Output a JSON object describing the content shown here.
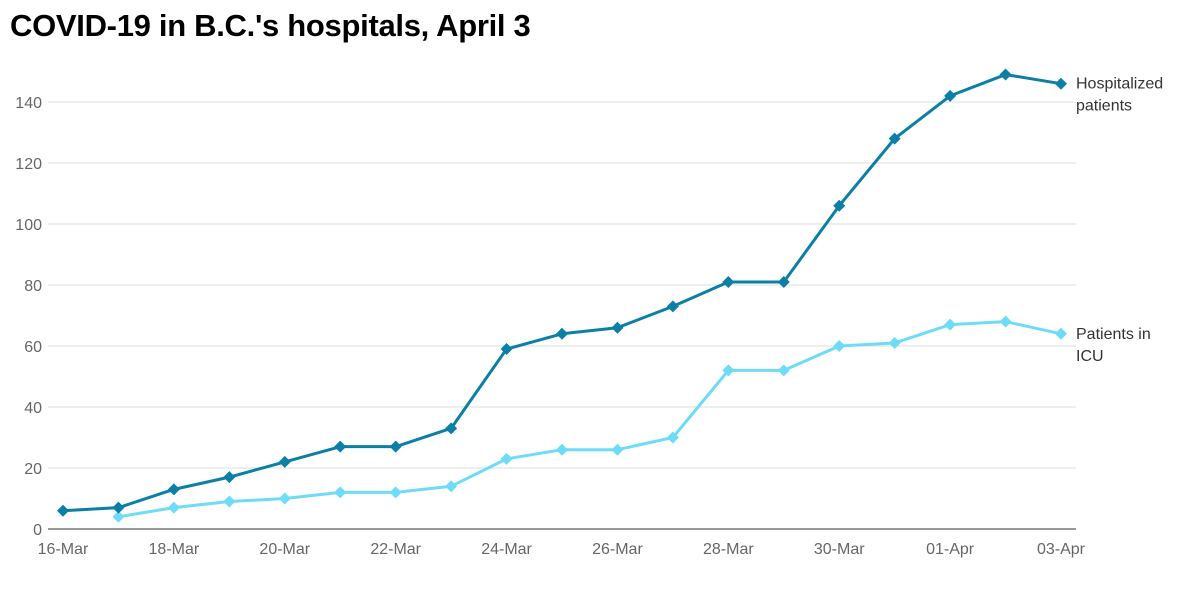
{
  "chart_data": {
    "type": "line",
    "title": "COVID-19 in B.C.'s hospitals, April 3",
    "xlabel": "",
    "ylabel": "",
    "ylim": [
      0,
      150
    ],
    "yticks": [
      0,
      20,
      40,
      60,
      80,
      100,
      120,
      140
    ],
    "grid": true,
    "x": [
      "16-Mar",
      "17-Mar",
      "18-Mar",
      "19-Mar",
      "20-Mar",
      "21-Mar",
      "22-Mar",
      "23-Mar",
      "24-Mar",
      "25-Mar",
      "26-Mar",
      "27-Mar",
      "28-Mar",
      "29-Mar",
      "30-Mar",
      "31-Mar",
      "01-Apr",
      "02-Apr",
      "03-Apr"
    ],
    "xtick_labels": [
      "16-Mar",
      "18-Mar",
      "20-Mar",
      "22-Mar",
      "24-Mar",
      "26-Mar",
      "28-Mar",
      "30-Mar",
      "01-Apr",
      "03-Apr"
    ],
    "series": [
      {
        "name": "Hospitalized patients",
        "label_lines": [
          "Hospitalized",
          "patients"
        ],
        "color": "#0b7fa6",
        "values": [
          6,
          7,
          13,
          17,
          22,
          27,
          27,
          33,
          59,
          64,
          66,
          73,
          81,
          81,
          106,
          128,
          142,
          149,
          146
        ]
      },
      {
        "name": "Patients in ICU",
        "label_lines": [
          "Patients in",
          "ICU"
        ],
        "color": "#6fdcf7",
        "values": [
          null,
          4,
          7,
          9,
          10,
          12,
          12,
          14,
          23,
          26,
          26,
          30,
          52,
          52,
          60,
          61,
          67,
          68,
          64
        ]
      }
    ]
  }
}
